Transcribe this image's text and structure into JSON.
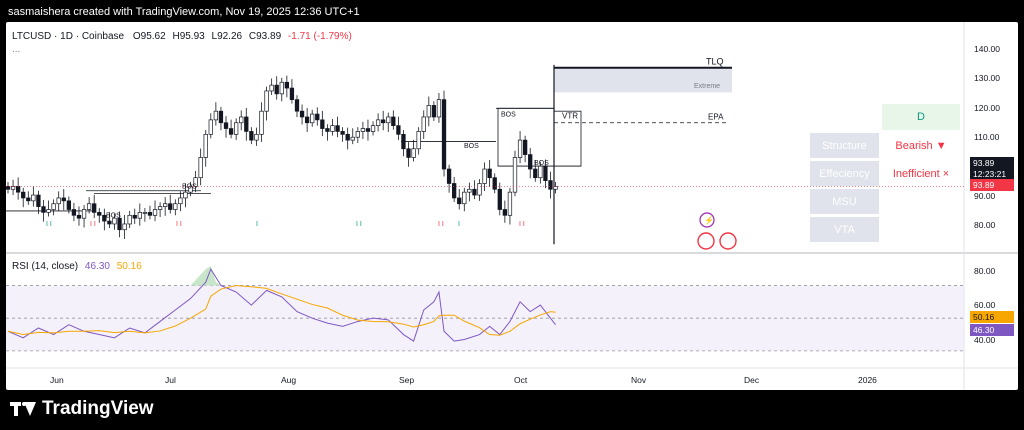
{
  "header": {
    "credit": "sasmaishera created with TradingView.com, Nov 19, 2025 12:36 UTC+1"
  },
  "legend": {
    "symbol": "LTCUSD · 1D · Coinbase",
    "open_label": "O",
    "open": "95.62",
    "high_label": "H",
    "high": "95.93",
    "low_label": "L",
    "low": "92.26",
    "close_label": "C",
    "close": "93.89",
    "change": "-1.71 (-1.79%)",
    "more": "..."
  },
  "rsi": {
    "label": "RSI (14, close)",
    "value": "46.30",
    "ma": "50.16"
  },
  "price_scale": [
    "140.00",
    "130.00",
    "120.00",
    "110.00",
    "90.00",
    "80.00"
  ],
  "rsi_scale": [
    "80.00",
    "60.00",
    "40.00"
  ],
  "price_tags": {
    "last": "93.89",
    "countdown": "12:23:21",
    "close_tag": "93.89",
    "rsi_ma_tag": "50.16",
    "rsi_tag": "46.30"
  },
  "time_axis": [
    "Jun",
    "Jul",
    "Aug",
    "Sep",
    "Oct",
    "Nov",
    "Dec",
    "2026"
  ],
  "annotations": {
    "bos": [
      "BOS",
      "BOS",
      "BOS",
      "BOS",
      "BOS",
      "BOS"
    ],
    "vtr": "VTR",
    "extreme": "Extreme",
    "epa": "EPA",
    "tlq": "TLQ"
  },
  "signals": {
    "green": [
      "I I",
      "I",
      "I I",
      "I I"
    ],
    "red": [
      "I I",
      "I I",
      "I I",
      "I"
    ]
  },
  "table": {
    "header": "D",
    "rows": [
      {
        "label": "Structure",
        "value": "Bearish ▼"
      },
      {
        "label": "Effeciency",
        "value": "Inefficient ×"
      },
      {
        "label": "MSU",
        "value": ""
      },
      {
        "label": "VTA",
        "value": ""
      }
    ]
  },
  "colors": {
    "up": "#089981",
    "down": "#f23645",
    "candle": "#131722",
    "rsi": "#7e57c2",
    "rsi_ma": "#f7a600",
    "rsi_band": "#ede7f6",
    "extreme_zone": "#e0e3eb",
    "table_header_bg": "#e8f5e9",
    "table_header_text": "#089981"
  },
  "footer": {
    "brand": "TradingView"
  },
  "chart_data": {
    "type": "candlestick",
    "title": "LTCUSD · 1D · Coinbase",
    "ylim": [
      72,
      146
    ],
    "rsi_ylim": [
      22,
      88
    ],
    "key_levels": {
      "extreme_top": 135,
      "extreme_bottom": 126.5,
      "epa": 116
    },
    "close_approx": [
      [
        0,
        93
      ],
      [
        1,
        94
      ],
      [
        2,
        92
      ],
      [
        3,
        90
      ],
      [
        4,
        89
      ],
      [
        5,
        91
      ],
      [
        6,
        87
      ],
      [
        7,
        85
      ],
      [
        8,
        86
      ],
      [
        9,
        88
      ],
      [
        10,
        90
      ],
      [
        11,
        89
      ],
      [
        12,
        86
      ],
      [
        13,
        84
      ],
      [
        14,
        83
      ],
      [
        15,
        86
      ],
      [
        16,
        88
      ],
      [
        17,
        85
      ],
      [
        18,
        84
      ],
      [
        19,
        82
      ],
      [
        20,
        81
      ],
      [
        21,
        83
      ],
      [
        22,
        79
      ],
      [
        23,
        81
      ],
      [
        24,
        84
      ],
      [
        25,
        83
      ],
      [
        26,
        85
      ],
      [
        27,
        85
      ],
      [
        28,
        84
      ],
      [
        29,
        86
      ],
      [
        30,
        87
      ],
      [
        31,
        88
      ],
      [
        32,
        86
      ],
      [
        33,
        88
      ],
      [
        34,
        90
      ],
      [
        35,
        92
      ],
      [
        36,
        94
      ],
      [
        37,
        97
      ],
      [
        38,
        104
      ],
      [
        39,
        112
      ],
      [
        40,
        117
      ],
      [
        41,
        120
      ],
      [
        42,
        116
      ],
      [
        43,
        114
      ],
      [
        44,
        112
      ],
      [
        45,
        116
      ],
      [
        46,
        118
      ],
      [
        47,
        113
      ],
      [
        48,
        110
      ],
      [
        49,
        112
      ],
      [
        50,
        120
      ],
      [
        51,
        127
      ],
      [
        52,
        129
      ],
      [
        53,
        126
      ],
      [
        54,
        130
      ],
      [
        55,
        128
      ],
      [
        56,
        124
      ],
      [
        57,
        120
      ],
      [
        58,
        118
      ],
      [
        59,
        116
      ],
      [
        60,
        119
      ],
      [
        61,
        117
      ],
      [
        62,
        114
      ],
      [
        63,
        113
      ],
      [
        64,
        115
      ],
      [
        65,
        113
      ],
      [
        66,
        112
      ],
      [
        67,
        110
      ],
      [
        68,
        111
      ],
      [
        69,
        113
      ],
      [
        70,
        114
      ],
      [
        71,
        113
      ],
      [
        72,
        115
      ],
      [
        73,
        117
      ],
      [
        74,
        116
      ],
      [
        75,
        118
      ],
      [
        76,
        115
      ],
      [
        77,
        112
      ],
      [
        78,
        107
      ],
      [
        79,
        104
      ],
      [
        80,
        107
      ],
      [
        81,
        113
      ],
      [
        82,
        118
      ],
      [
        83,
        122
      ],
      [
        84,
        118
      ],
      [
        85,
        124
      ],
      [
        86,
        100
      ],
      [
        87,
        95
      ],
      [
        88,
        90
      ],
      [
        89,
        88
      ],
      [
        90,
        92
      ],
      [
        91,
        93
      ],
      [
        92,
        91
      ],
      [
        93,
        95
      ],
      [
        94,
        100
      ],
      [
        95,
        97
      ],
      [
        96,
        93
      ],
      [
        97,
        86
      ],
      [
        98,
        84
      ],
      [
        99,
        92
      ],
      [
        100,
        104
      ],
      [
        101,
        110
      ],
      [
        102,
        105
      ],
      [
        103,
        100
      ],
      [
        104,
        97
      ],
      [
        105,
        101
      ],
      [
        106,
        96
      ],
      [
        107,
        93
      ],
      [
        108,
        94
      ]
    ],
    "rsi_approx": [
      [
        0,
        42
      ],
      [
        3,
        38
      ],
      [
        6,
        44
      ],
      [
        9,
        40
      ],
      [
        12,
        46
      ],
      [
        15,
        42
      ],
      [
        18,
        40
      ],
      [
        21,
        38
      ],
      [
        24,
        44
      ],
      [
        27,
        41
      ],
      [
        30,
        48
      ],
      [
        33,
        55
      ],
      [
        36,
        62
      ],
      [
        39,
        72
      ],
      [
        40,
        80
      ],
      [
        42,
        70
      ],
      [
        45,
        66
      ],
      [
        48,
        58
      ],
      [
        51,
        67
      ],
      [
        54,
        63
      ],
      [
        57,
        54
      ],
      [
        60,
        50
      ],
      [
        63,
        47
      ],
      [
        66,
        45
      ],
      [
        69,
        48
      ],
      [
        72,
        50
      ],
      [
        75,
        49
      ],
      [
        78,
        40
      ],
      [
        80,
        36
      ],
      [
        82,
        55
      ],
      [
        84,
        60
      ],
      [
        85,
        66
      ],
      [
        86,
        42
      ],
      [
        88,
        36
      ],
      [
        90,
        37
      ],
      [
        93,
        40
      ],
      [
        95,
        45
      ],
      [
        97,
        40
      ],
      [
        99,
        48
      ],
      [
        101,
        60
      ],
      [
        103,
        54
      ],
      [
        105,
        58
      ],
      [
        107,
        50
      ],
      [
        108,
        46
      ]
    ]
  }
}
